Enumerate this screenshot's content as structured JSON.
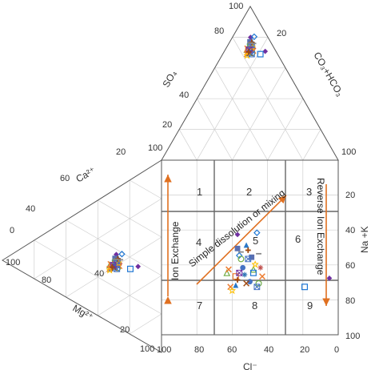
{
  "chart_data": {
    "type": "scatter",
    "title": "",
    "cation_triangle": {
      "left_label": "Ca²⁺",
      "bottom_label": "Mg²⁺",
      "left_ticks": [
        "100",
        "80",
        "60",
        "40",
        "20",
        "0"
      ],
      "bottom_ticks": [
        "100",
        "80",
        "60",
        "40",
        "20"
      ]
    },
    "anion_triangle": {
      "left_label": "SO₄",
      "right_label": "CO₃+HCO₃",
      "left_ticks": [
        "100",
        "80",
        "60",
        "40",
        "20"
      ],
      "right_ticks": [
        "20",
        "40",
        "60",
        "80",
        "100"
      ]
    },
    "diamond": {
      "xlabel": "Cl⁻",
      "ylabel": "Na +K",
      "x_ticks": [
        "100",
        "80",
        "60",
        "40",
        "20",
        "0"
      ],
      "y_ticks": [
        "20",
        "40",
        "60",
        "80",
        "100"
      ],
      "xlim": [
        100,
        0
      ],
      "ylim": [
        0,
        100
      ],
      "grid": true
    },
    "zones": [
      "1",
      "2",
      "3",
      "4",
      "5",
      "6",
      "7",
      "8",
      "9"
    ],
    "annotations": [
      "Ion Exchange",
      "Simple dissolution or mixing",
      "Reverse Ion Exchange"
    ],
    "series": [
      {
        "marker": "diamond",
        "color": "#7030a0",
        "points": [
          [
            57,
            38
          ],
          [
            5,
            63
          ]
        ]
      },
      {
        "marker": "diamond-open",
        "color": "#1f77d4",
        "points": [
          [
            46,
            37
          ],
          [
            56,
            50
          ]
        ]
      },
      {
        "marker": "triangle",
        "color": "#2a78c8",
        "points": [
          [
            52,
            44
          ],
          [
            58,
            67
          ]
        ]
      },
      {
        "marker": "triangle-open",
        "color": "#70ad47",
        "points": [
          [
            48,
            58
          ],
          [
            63,
            60
          ]
        ]
      },
      {
        "marker": "square",
        "color": "#5a6fb0",
        "points": [
          [
            57,
            46
          ],
          [
            49,
            51
          ]
        ]
      },
      {
        "marker": "square-open",
        "color": "#1f77d4",
        "points": [
          [
            19,
            68
          ],
          [
            48,
            60
          ]
        ]
      },
      {
        "marker": "square-open",
        "color": "#ed7d31",
        "points": [
          [
            58,
            62
          ]
        ]
      },
      {
        "marker": "circle",
        "color": "#4472c4",
        "points": [
          [
            54,
            57
          ],
          [
            50,
            65
          ]
        ]
      },
      {
        "marker": "circle-open",
        "color": "#70ad47",
        "points": [
          [
            55,
            52
          ],
          [
            45,
            66
          ]
        ]
      },
      {
        "marker": "x",
        "color": "#ed7d31",
        "points": [
          [
            62,
            58
          ],
          [
            43,
            62
          ],
          [
            61,
            68
          ]
        ]
      },
      {
        "marker": "x",
        "color": "#9e480e",
        "points": [
          [
            52,
            66
          ]
        ]
      },
      {
        "marker": "asterisk",
        "color": "#c0504d",
        "points": [
          [
            44,
            57
          ]
        ]
      },
      {
        "marker": "asterisk",
        "color": "#2e75b6",
        "points": [
          [
            53,
            61
          ]
        ]
      },
      {
        "marker": "star",
        "color": "#ffc000",
        "points": [
          [
            60,
            70
          ],
          [
            47,
            55
          ]
        ]
      },
      {
        "marker": "cross-box",
        "color": "#4472c4",
        "points": [
          [
            51,
            52
          ],
          [
            46,
            68
          ]
        ]
      },
      {
        "marker": "cross-box",
        "color": "#7030a0",
        "points": [
          [
            56,
            60
          ]
        ]
      },
      {
        "marker": "plus",
        "color": "#9e480e",
        "points": [
          [
            51,
            47
          ],
          [
            57,
            64
          ]
        ]
      },
      {
        "marker": "dash",
        "color": "#888888",
        "points": [
          [
            55,
            48
          ],
          [
            45,
            49
          ]
        ]
      }
    ]
  }
}
